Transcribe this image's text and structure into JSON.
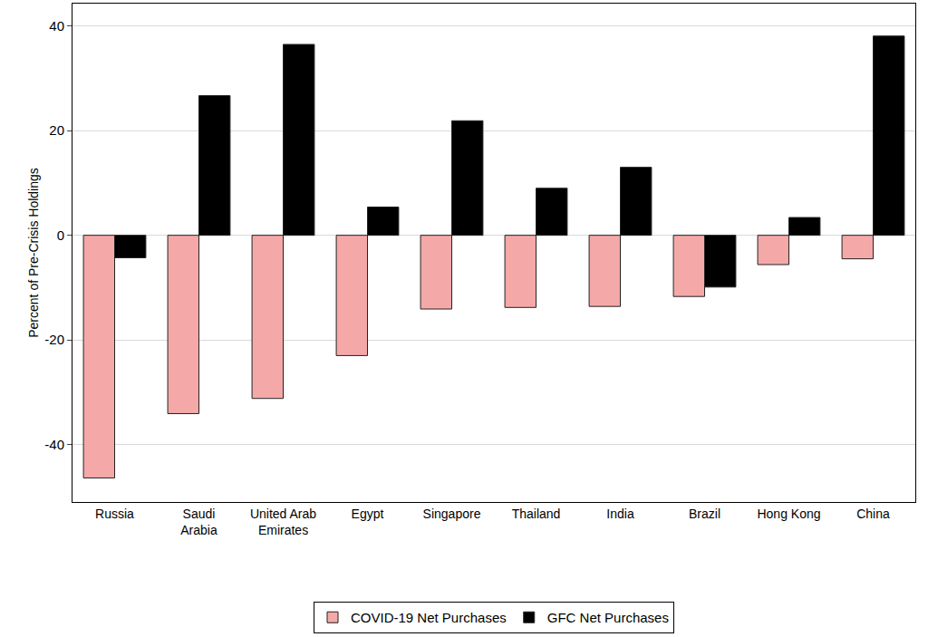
{
  "chart_data": {
    "type": "bar",
    "categories": [
      "Russia",
      "Saudi Arabia",
      "United Arab Emirates",
      "Egypt",
      "Singapore",
      "Thailand",
      "India",
      "Brazil",
      "Hong Kong",
      "China"
    ],
    "series": [
      {
        "name": "COVID-19 Net Purchases",
        "color": "#f4a9a8",
        "values": [
          -46.4,
          -34.1,
          -31.2,
          -23.0,
          -14.1,
          -13.8,
          -13.6,
          -11.7,
          -5.6,
          -4.5
        ]
      },
      {
        "name": "GFC Net Purchases",
        "color": "#000000",
        "values": [
          -4.3,
          26.7,
          36.5,
          5.4,
          21.9,
          9.0,
          13.0,
          -9.9,
          3.4,
          38.1
        ]
      }
    ],
    "y_label": "Percent of Pre-Crisis Holdings",
    "ylim": [
      -51,
      44.3
    ],
    "yticks": [
      -40,
      -20,
      0,
      20,
      40
    ],
    "grid": true,
    "legend": "bottom"
  }
}
